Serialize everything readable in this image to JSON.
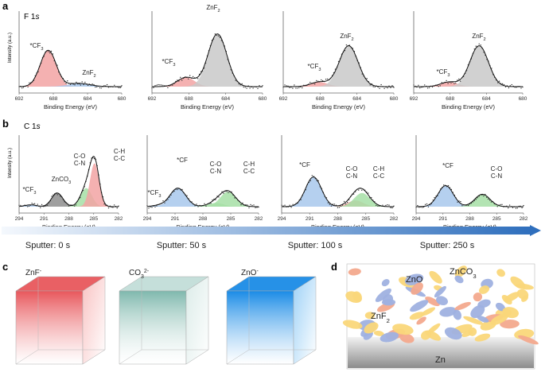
{
  "panel_labels": {
    "a": "a",
    "b": "b",
    "c": "c",
    "d": "d"
  },
  "row_a": {
    "element_label": "F 1",
    "element_suffix": "s",
    "ylabel": "Intensity (a.u.)",
    "xlabel": "Binding Energy (eV)",
    "xlim": [
      692,
      680
    ],
    "ticks": [
      "692",
      "688",
      "684",
      "680"
    ]
  },
  "row_b": {
    "element_label": "C 1",
    "element_suffix": "s",
    "ylabel": "Intensity (a.u.)",
    "xlabel": "Binding Energy (eV)",
    "xlim": [
      294,
      282
    ],
    "ticks": [
      "294",
      "291",
      "288",
      "285",
      "282"
    ]
  },
  "sputter": {
    "labels": [
      "Sputter: 0 s",
      "Sputter: 50 s",
      "Sputter: 100 s",
      "Sputter: 250 s"
    ],
    "start_color": "#f4f8fd",
    "end_color": "#2f6fbd"
  },
  "colors": {
    "cf3": "#f2a3a3",
    "znf2": "#c9c9c9",
    "znf2_first": "#a8c8ec",
    "zn_co3": "#8e8e8e",
    "co_cn": "#a6dfa6",
    "ch_cc": "#f2a3a3",
    "cf": "#a8c8ec",
    "cf3_b": "#a8c8ec"
  },
  "chart_data": [
    {
      "type": "line",
      "panel": "a",
      "title": "F 1s, Sputter: 0 s",
      "xlabel": "Binding Energy (eV)",
      "ylabel": "Intensity (a.u.)",
      "xlim": [
        692,
        680
      ],
      "ylim": [
        0,
        1
      ],
      "peaks": [
        {
          "name": "*CF3",
          "label": "*CF",
          "sub": "3",
          "sup": "",
          "center": 688.6,
          "height": 0.55,
          "fwhm": 2.2,
          "color_key": "cf3"
        },
        {
          "name": "ZnF2",
          "label": "ZnF",
          "sub": "2",
          "sup": "",
          "center": 685.0,
          "height": 0.05,
          "fwhm": 3.0,
          "color_key": "znf2_first"
        }
      ]
    },
    {
      "type": "line",
      "panel": "a",
      "title": "F 1s, Sputter: 50 s",
      "xlabel": "Binding Energy (eV)",
      "ylabel": "Intensity (a.u.)",
      "xlim": [
        692,
        680
      ],
      "ylim": [
        0,
        1
      ],
      "peaks": [
        {
          "name": "*CF3",
          "label": "*CF",
          "sub": "3",
          "sup": "",
          "center": 688.3,
          "height": 0.14,
          "fwhm": 2.2,
          "color_key": "cf3"
        },
        {
          "name": "ZnF2",
          "label": "ZnF",
          "sub": "2",
          "sup": "",
          "center": 684.9,
          "height": 0.8,
          "fwhm": 2.4,
          "color_key": "znf2"
        }
      ]
    },
    {
      "type": "line",
      "panel": "a",
      "title": "F 1s, Sputter: 100 s",
      "xlabel": "Binding Energy (eV)",
      "ylabel": "Intensity (a.u.)",
      "xlim": [
        692,
        680
      ],
      "ylim": [
        0,
        1
      ],
      "peaks": [
        {
          "name": "*CF3",
          "label": "*CF",
          "sub": "3",
          "sup": "",
          "center": 688.1,
          "height": 0.07,
          "fwhm": 2.2,
          "color_key": "cf3"
        },
        {
          "name": "ZnF2",
          "label": "ZnF",
          "sub": "2",
          "sup": "",
          "center": 684.9,
          "height": 0.62,
          "fwhm": 2.4,
          "color_key": "znf2"
        }
      ]
    },
    {
      "type": "line",
      "panel": "a",
      "title": "F 1s, Sputter: 250 s",
      "xlabel": "Binding Energy (eV)",
      "ylabel": "Intensity (a.u.)",
      "xlim": [
        692,
        680
      ],
      "ylim": [
        0,
        1
      ],
      "peaks": [
        {
          "name": "*CF3",
          "label": "*CF",
          "sub": "3",
          "sup": "",
          "center": 688.1,
          "height": 0.07,
          "fwhm": 2.2,
          "color_key": "cf3"
        },
        {
          "name": "ZnF2",
          "label": "ZnF",
          "sub": "2",
          "sup": "",
          "center": 684.8,
          "height": 0.62,
          "fwhm": 2.4,
          "color_key": "znf2"
        }
      ]
    },
    {
      "type": "line",
      "panel": "b",
      "title": "C 1s, Sputter: 0 s",
      "xlabel": "Binding Energy (eV)",
      "ylabel": "Intensity (a.u.)",
      "xlim": [
        294,
        282
      ],
      "ylim": [
        0,
        1
      ],
      "peaks": [
        {
          "name": "*CF3",
          "label": "*CF",
          "sub": "3",
          "sup": "",
          "center": 292.6,
          "height": 0.03,
          "fwhm": 1.6,
          "color_key": "cf3_b"
        },
        {
          "name": "ZnCO3",
          "label": "ZnCO",
          "sub": "3",
          "sup": "",
          "center": 289.4,
          "height": 0.22,
          "fwhm": 1.6,
          "color_key": "zn_co3"
        },
        {
          "name": "C-O C-N",
          "label": "C-O|C-N",
          "sub": "",
          "sup": "",
          "center": 285.9,
          "height": 0.3,
          "fwhm": 1.6,
          "color_key": "co_cn"
        },
        {
          "name": "C-H C-C",
          "label": "C-H|C-C",
          "sub": "",
          "sup": "",
          "center": 284.9,
          "height": 0.7,
          "fwhm": 1.3,
          "color_key": "ch_cc"
        }
      ]
    },
    {
      "type": "line",
      "panel": "b",
      "title": "C 1s, Sputter: 50 s",
      "xlabel": "Binding Energy (eV)",
      "ylabel": "Intensity (a.u.)",
      "xlim": [
        294,
        282
      ],
      "ylim": [
        0,
        1
      ],
      "peaks": [
        {
          "name": "*CF3",
          "label": "*CF",
          "sub": "3",
          "sup": "",
          "center": 292.8,
          "height": 0.02,
          "fwhm": 1.6,
          "color_key": "cf3_b"
        },
        {
          "name": "*CF",
          "label": "*CF",
          "sub": "",
          "sup": "",
          "center": 290.7,
          "height": 0.3,
          "fwhm": 2.0,
          "color_key": "cf"
        },
        {
          "name": "C-O C-N",
          "label": "C-O|C-N",
          "sub": "",
          "sup": "",
          "center": 286.6,
          "height": 0.06,
          "fwhm": 2.0,
          "color_key": "co_cn"
        },
        {
          "name": "C-H C-C",
          "label": "C-H|C-C",
          "sub": "",
          "sup": "",
          "center": 285.3,
          "height": 0.24,
          "fwhm": 2.0,
          "color_key": "co_cn"
        }
      ]
    },
    {
      "type": "line",
      "panel": "b",
      "title": "C 1s, Sputter: 100 s",
      "xlabel": "Binding Energy (eV)",
      "ylabel": "Intensity (a.u.)",
      "xlim": [
        294,
        282
      ],
      "ylim": [
        0,
        1
      ],
      "peaks": [
        {
          "name": "*CF",
          "label": "*CF",
          "sub": "",
          "sup": "",
          "center": 290.6,
          "height": 0.48,
          "fwhm": 2.0,
          "color_key": "cf"
        },
        {
          "name": "C-O C-N",
          "label": "C-O|C-N",
          "sub": "",
          "sup": "",
          "center": 286.1,
          "height": 0.1,
          "fwhm": 2.0,
          "color_key": "ch_cc"
        },
        {
          "name": "C-H C-C",
          "label": "C-H|C-C",
          "sub": "",
          "sup": "",
          "center": 285.4,
          "height": 0.22,
          "fwhm": 2.0,
          "color_key": "co_cn"
        }
      ]
    },
    {
      "type": "line",
      "panel": "b",
      "title": "C 1s, Sputter: 250 s",
      "xlabel": "Binding Energy (eV)",
      "ylabel": "Intensity (a.u.)",
      "xlim": [
        294,
        282
      ],
      "ylim": [
        0,
        1
      ],
      "peaks": [
        {
          "name": "*CF",
          "label": "*CF",
          "sub": "",
          "sup": "",
          "center": 290.7,
          "height": 0.34,
          "fwhm": 2.0,
          "color_key": "cf"
        },
        {
          "name": "C-O C-N",
          "label": "C-O|C-N",
          "sub": "",
          "sup": "",
          "center": 286.6,
          "height": 0.2,
          "fwhm": 2.0,
          "color_key": "co_cn"
        }
      ]
    }
  ],
  "cubes": [
    {
      "name": "ZnF",
      "sup": "-",
      "color": "#e8575c",
      "light": "#f9c3c3"
    },
    {
      "name": "CO",
      "sub": "3",
      "sup": "2-",
      "color": "#7fb8ad",
      "light": "#dcece9"
    },
    {
      "name": "ZnO",
      "sup": "-",
      "color": "#1a8be6",
      "light": "#9fd2f7"
    }
  ],
  "schematic": {
    "labels": {
      "zno": "ZnO",
      "znco3": "ZnCO",
      "znco3_sub": "3",
      "znf2": "ZnF",
      "znf2_sub": "2",
      "zn": "Zn"
    },
    "colors": {
      "yellow": "#fad77a",
      "blue": "#9fb1e0",
      "orange": "#f3a98d",
      "substrate_top": "#f2f2f2",
      "substrate_bottom": "#8c8c8c"
    }
  }
}
